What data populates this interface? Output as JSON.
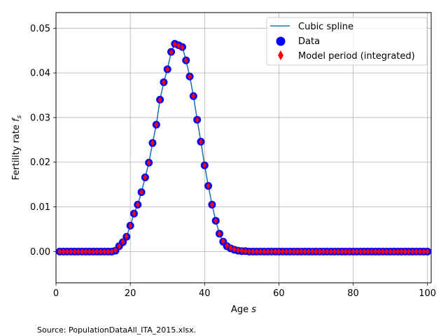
{
  "chart_data": {
    "type": "line",
    "xlabel": "Age",
    "xlabel_var": "s",
    "ylabel": "Fertility rate",
    "ylabel_var": "f",
    "ylabel_sub": "s",
    "xlim": [
      0,
      101
    ],
    "ylim": [
      -0.007,
      0.0535
    ],
    "xticks": [
      0,
      20,
      40,
      60,
      80,
      100
    ],
    "yticks": [
      0.0,
      0.01,
      0.02,
      0.03,
      0.04,
      0.05
    ],
    "xtick_labels": [
      "0",
      "20",
      "40",
      "60",
      "80",
      "100"
    ],
    "ytick_labels": [
      "0.00",
      "0.01",
      "0.02",
      "0.03",
      "0.04",
      "0.05"
    ],
    "grid": true,
    "legend_position": "top-right",
    "source_note": "Source: PopulationDataAll_ITA_2015.xlsx.",
    "series": [
      {
        "name": "Cubic spline",
        "kind": "line",
        "color": "#1f77b4"
      },
      {
        "name": "Data",
        "kind": "scatter-circle",
        "color": "#0000ff"
      },
      {
        "name": "Model period (integrated)",
        "kind": "scatter-diamond",
        "color": "#ff0000"
      }
    ],
    "x": [
      1,
      2,
      3,
      4,
      5,
      6,
      7,
      8,
      9,
      10,
      11,
      12,
      13,
      14,
      15,
      16,
      17,
      18,
      19,
      20,
      21,
      22,
      23,
      24,
      25,
      26,
      27,
      28,
      29,
      30,
      31,
      32,
      33,
      34,
      35,
      36,
      37,
      38,
      39,
      40,
      41,
      42,
      43,
      44,
      45,
      46,
      47,
      48,
      49,
      50,
      51,
      52,
      53,
      54,
      55,
      56,
      57,
      58,
      59,
      60,
      61,
      62,
      63,
      64,
      65,
      66,
      67,
      68,
      69,
      70,
      71,
      72,
      73,
      74,
      75,
      76,
      77,
      78,
      79,
      80,
      81,
      82,
      83,
      84,
      85,
      86,
      87,
      88,
      89,
      90,
      91,
      92,
      93,
      94,
      95,
      96,
      97,
      98,
      99,
      100
    ],
    "data_y": [
      0,
      0,
      0,
      0,
      0,
      0,
      0,
      0,
      0,
      0,
      0,
      0,
      0,
      0,
      0,
      0.0002,
      0.0012,
      0.0021,
      0.0033,
      0.0058,
      0.0085,
      0.0105,
      0.0133,
      0.0166,
      0.0199,
      0.0243,
      0.0284,
      0.034,
      0.0379,
      0.0408,
      0.0447,
      0.0465,
      0.0462,
      0.0458,
      0.0428,
      0.0392,
      0.0348,
      0.0295,
      0.0246,
      0.0193,
      0.0147,
      0.0105,
      0.0069,
      0.004,
      0.0022,
      0.0012,
      0.0007,
      0.0004,
      0.0002,
      0.0001,
      0.0001,
      0,
      0,
      0,
      0,
      0,
      0,
      0,
      0,
      0,
      0,
      0,
      0,
      0,
      0,
      0,
      0,
      0,
      0,
      0,
      0,
      0,
      0,
      0,
      0,
      0,
      0,
      0,
      0,
      0,
      0,
      0,
      0,
      0,
      0,
      0,
      0,
      0,
      0,
      0,
      0,
      0,
      0,
      0,
      0,
      0,
      0,
      0,
      0,
      0
    ],
    "model_x": [
      1,
      2,
      3,
      4,
      5,
      6,
      7,
      8,
      9,
      10,
      11,
      12,
      13,
      14,
      15,
      16,
      17,
      18,
      19,
      20,
      21,
      22,
      23,
      24,
      25,
      26,
      27,
      28,
      29,
      30,
      31,
      32,
      33,
      34,
      35,
      36,
      37,
      38,
      39,
      40,
      41,
      42,
      43,
      44,
      45,
      46,
      47,
      48,
      49,
      50,
      51,
      52,
      53,
      54,
      55,
      56,
      57,
      58,
      59,
      60,
      61,
      62,
      63,
      64,
      65,
      66,
      67,
      68,
      69,
      70,
      71,
      72,
      73,
      74,
      75,
      76,
      77,
      78,
      79,
      80,
      81,
      82,
      83,
      84,
      85,
      86,
      87,
      88,
      89,
      90,
      91,
      92,
      93,
      94,
      95,
      96,
      97,
      98,
      99,
      100
    ],
    "model_y": [
      0,
      0,
      0,
      0,
      0,
      0,
      0,
      0,
      0,
      0,
      0,
      0,
      0,
      0,
      0,
      0.0003,
      0.0012,
      0.0022,
      0.0034,
      0.0058,
      0.0085,
      0.0105,
      0.0133,
      0.0166,
      0.0199,
      0.0243,
      0.0284,
      0.0339,
      0.0379,
      0.0408,
      0.0446,
      0.0464,
      0.0461,
      0.0457,
      0.0428,
      0.0392,
      0.0348,
      0.0295,
      0.0246,
      0.0193,
      0.0147,
      0.0105,
      0.0069,
      0.004,
      0.0023,
      0.0013,
      0.0008,
      0.0005,
      0.0003,
      0.0002,
      0.0001,
      0,
      0,
      0,
      0,
      0,
      0,
      0,
      0,
      0,
      0,
      0,
      0,
      0,
      0,
      0,
      0,
      0,
      0,
      0,
      0,
      0,
      0,
      0,
      0,
      0,
      0,
      0,
      0,
      0,
      0,
      0,
      0,
      0,
      0,
      0,
      0,
      0,
      0,
      0,
      0,
      0,
      0,
      0,
      0,
      0,
      0,
      0,
      0,
      0
    ]
  }
}
